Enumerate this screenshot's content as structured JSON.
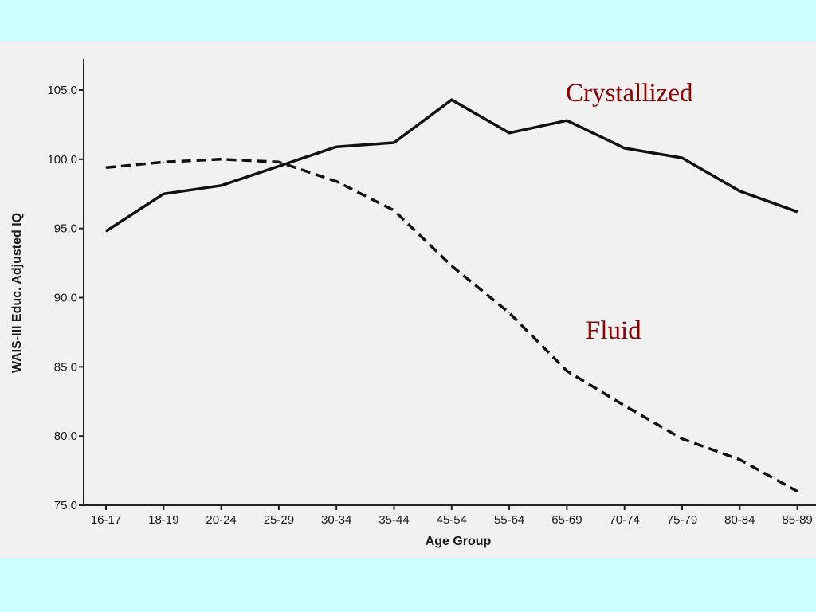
{
  "chart_data": {
    "type": "line",
    "xlabel": "Age Group",
    "ylabel": "WAIS-III Educ. Adjusted IQ",
    "categories": [
      "16-17",
      "18-19",
      "20-24",
      "25-29",
      "30-34",
      "35-44",
      "45-54",
      "55-64",
      "65-69",
      "70-74",
      "75-79",
      "80-84",
      "85-89"
    ],
    "ylim": [
      75.0,
      105.0
    ],
    "yticks": [
      "75.0",
      "80.0",
      "85.0",
      "90.0",
      "95.0",
      "100.0",
      "105.0"
    ],
    "grid": false,
    "legend": "none",
    "series": [
      {
        "name": "Crystallized",
        "style": "solid",
        "color": "#111111",
        "label_color": "#8b0000",
        "values": [
          94.8,
          97.5,
          98.1,
          99.5,
          100.9,
          101.2,
          104.3,
          101.9,
          102.8,
          100.8,
          100.1,
          97.7,
          96.2
        ]
      },
      {
        "name": "Fluid",
        "style": "dashed",
        "color": "#111111",
        "label_color": "#8b0000",
        "values": [
          99.4,
          99.8,
          100.0,
          99.8,
          98.4,
          96.3,
          92.3,
          88.9,
          84.7,
          82.2,
          79.8,
          78.3,
          76.0
        ]
      }
    ]
  }
}
